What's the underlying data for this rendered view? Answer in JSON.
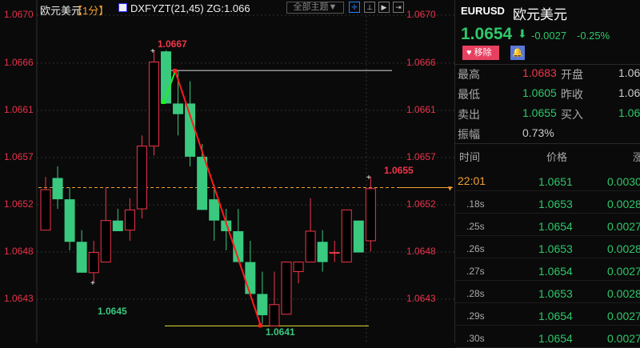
{
  "header": {
    "title": "欧元美元",
    "period": "【1分】",
    "indicator": "DXFYZT(21,45) ZG:1.066",
    "theme_select": "全部主题▼"
  },
  "axis": {
    "labels": [
      "1.0670",
      "1.0666",
      "1.0661",
      "1.0657",
      "1.0652",
      "1.0648",
      "1.0643"
    ]
  },
  "annotations": {
    "high": "1.0667",
    "low_left": "1.0645",
    "low": "1.0641",
    "last_high": "1.0655"
  },
  "colors": {
    "up": "#f0364a",
    "down": "#39c97f",
    "bg": "#0a0a0a",
    "current_line": "#f0a030",
    "support": "#e8e030"
  },
  "chart_data": {
    "type": "candlestick",
    "ylim": [
      1.064,
      1.067
    ],
    "candles": [
      [
        1.06498,
        1.06548,
        1.06498,
        1.06536
      ],
      [
        1.06547,
        1.06558,
        1.06518,
        1.06527
      ],
      [
        1.06527,
        1.06538,
        1.06479,
        1.06487
      ],
      [
        1.06487,
        1.06498,
        1.06458,
        1.06458
      ],
      [
        1.06458,
        1.06488,
        1.06449,
        1.06477
      ],
      [
        1.06468,
        1.06538,
        1.06468,
        1.06507
      ],
      [
        1.06507,
        1.06518,
        1.06497,
        1.06497
      ],
      [
        1.06498,
        1.06528,
        1.06488,
        1.06517
      ],
      [
        1.06518,
        1.06587,
        1.06509,
        1.06577
      ],
      [
        1.06577,
        1.06667,
        1.06568,
        1.06656
      ],
      [
        1.06666,
        1.06667,
        1.06617,
        1.06617
      ],
      [
        1.06617,
        1.06648,
        1.06587,
        1.06607
      ],
      [
        1.06617,
        1.06638,
        1.06558,
        1.06567
      ],
      [
        1.06567,
        1.06579,
        1.06517,
        1.06517
      ],
      [
        1.06527,
        1.06541,
        1.06488,
        1.06507
      ],
      [
        1.06507,
        1.06518,
        1.06479,
        1.06497
      ],
      [
        1.06497,
        1.06518,
        1.06468,
        1.06468
      ],
      [
        1.06468,
        1.06488,
        1.06438,
        1.06438
      ],
      [
        1.06438,
        1.06459,
        1.0641,
        1.06418
      ],
      [
        1.06408,
        1.06459,
        1.06408,
        1.06428
      ],
      [
        1.06419,
        1.06468,
        1.06419,
        1.06468
      ],
      [
        1.06459,
        1.06468,
        1.06448,
        1.06468
      ],
      [
        1.06468,
        1.06528,
        1.06468,
        1.06497
      ],
      [
        1.06487,
        1.06498,
        1.06459,
        1.06468
      ],
      [
        1.06477,
        1.06488,
        1.06468,
        1.06477
      ],
      [
        1.06468,
        1.06517,
        1.06468,
        1.06517
      ],
      [
        1.06507,
        1.06507,
        1.06477,
        1.06477
      ],
      [
        1.06488,
        1.06548,
        1.06478,
        1.06537
      ]
    ],
    "resistance": 1.06648,
    "support": 1.06408,
    "current": 1.06538
  },
  "quote": {
    "symbol": "EURUSD",
    "name": "欧元美元",
    "price": "1.0654",
    "arrow": "⬇",
    "change": "-0.0027",
    "pct": "-0.25%",
    "remove": "移除",
    "stats": [
      {
        "l1": "最高",
        "v1": "1.0683",
        "l2": "开盘",
        "v2": "1.06"
      },
      {
        "l1": "最低",
        "v1": "1.0605",
        "l2": "昨收",
        "v2": "1.06"
      },
      {
        "l1": "卖出",
        "v1": "1.0655",
        "l2": "买入",
        "v2": "1.06"
      },
      {
        "l1": "振幅",
        "v1": "0.73%"
      }
    ]
  },
  "ticks": {
    "headers": [
      "时间",
      "价格",
      "涨"
    ],
    "rows": [
      {
        "t": "22:01",
        "p": "1.0651",
        "c": "0.0030"
      },
      {
        "t": ".18s",
        "p": "1.0653",
        "c": "0.0028"
      },
      {
        "t": ".25s",
        "p": "1.0654",
        "c": "0.0027"
      },
      {
        "t": ".26s",
        "p": "1.0653",
        "c": "0.0028"
      },
      {
        "t": ".27s",
        "p": "1.0654",
        "c": "0.0027"
      },
      {
        "t": ".28s",
        "p": "1.0653",
        "c": "0.0028"
      },
      {
        "t": ".29s",
        "p": "1.0654",
        "c": "0.0027"
      },
      {
        "t": ".30s",
        "p": "1.0654",
        "c": "0.0027"
      }
    ]
  }
}
